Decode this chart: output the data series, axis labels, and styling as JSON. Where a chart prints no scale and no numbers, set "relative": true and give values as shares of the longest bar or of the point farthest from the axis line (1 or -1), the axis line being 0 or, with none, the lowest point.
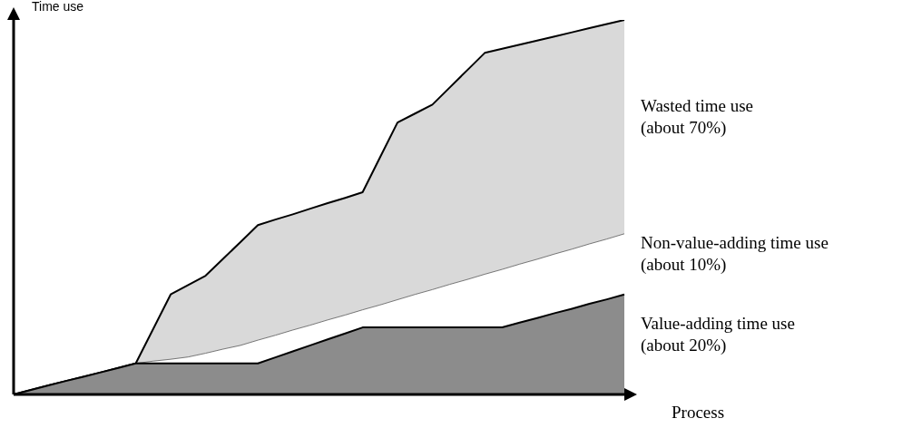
{
  "chart_data": {
    "type": "area",
    "relative": true,
    "stacked": true,
    "xlabel": "Process",
    "ylabel": "Time use",
    "legend": false,
    "marker": "none",
    "categories": [
      null,
      null,
      null,
      null,
      null,
      null,
      null,
      null,
      null,
      null,
      null,
      null,
      null,
      null,
      null,
      null,
      null,
      null,
      null,
      null,
      null,
      null,
      null,
      null,
      null,
      null,
      null,
      null,
      null,
      null,
      null,
      null,
      null,
      null,
      null,
      null
    ],
    "series": [
      {
        "name": "Value-adding time use\n(about 20%)",
        "color": "#8c8c8c",
        "values": [
          0,
          0.012,
          0.024,
          0.036,
          0.047,
          0.059,
          0.071,
          0.083,
          0.083,
          0.083,
          0.083,
          0.083,
          0.083,
          0.083,
          0.083,
          0.099,
          0.115,
          0.131,
          0.147,
          0.163,
          0.179,
          0.179,
          0.179,
          0.179,
          0.179,
          0.179,
          0.179,
          0.179,
          0.179,
          0.192,
          0.204,
          0.217,
          0.229,
          0.242,
          0.254,
          0.267
        ]
      },
      {
        "name": "Non-value-adding time use\n(about 10%)",
        "color": "#ffffff",
        "values": [
          0,
          0,
          0,
          0,
          0,
          0,
          0,
          0,
          0.006,
          0.011,
          0.017,
          0.027,
          0.038,
          0.048,
          0.062,
          0.059,
          0.057,
          0.054,
          0.052,
          0.049,
          0.047,
          0.06,
          0.074,
          0.088,
          0.101,
          0.115,
          0.128,
          0.142,
          0.155,
          0.156,
          0.157,
          0.158,
          0.159,
          0.16,
          0.161,
          0.162
        ]
      },
      {
        "name": "Wasted time use\n(about 70%)",
        "color": "#d9d9d9",
        "values": [
          0,
          0,
          0,
          0,
          0,
          0,
          0,
          0,
          0.086,
          0.173,
          0.192,
          0.207,
          0.241,
          0.276,
          0.307,
          0.309,
          0.309,
          0.311,
          0.312,
          0.313,
          0.314,
          0.394,
          0.473,
          0.483,
          0.494,
          0.526,
          0.559,
          0.591,
          0.589,
          0.586,
          0.584,
          0.581,
          0.579,
          0.576,
          0.574,
          0.571
        ]
      }
    ]
  }
}
